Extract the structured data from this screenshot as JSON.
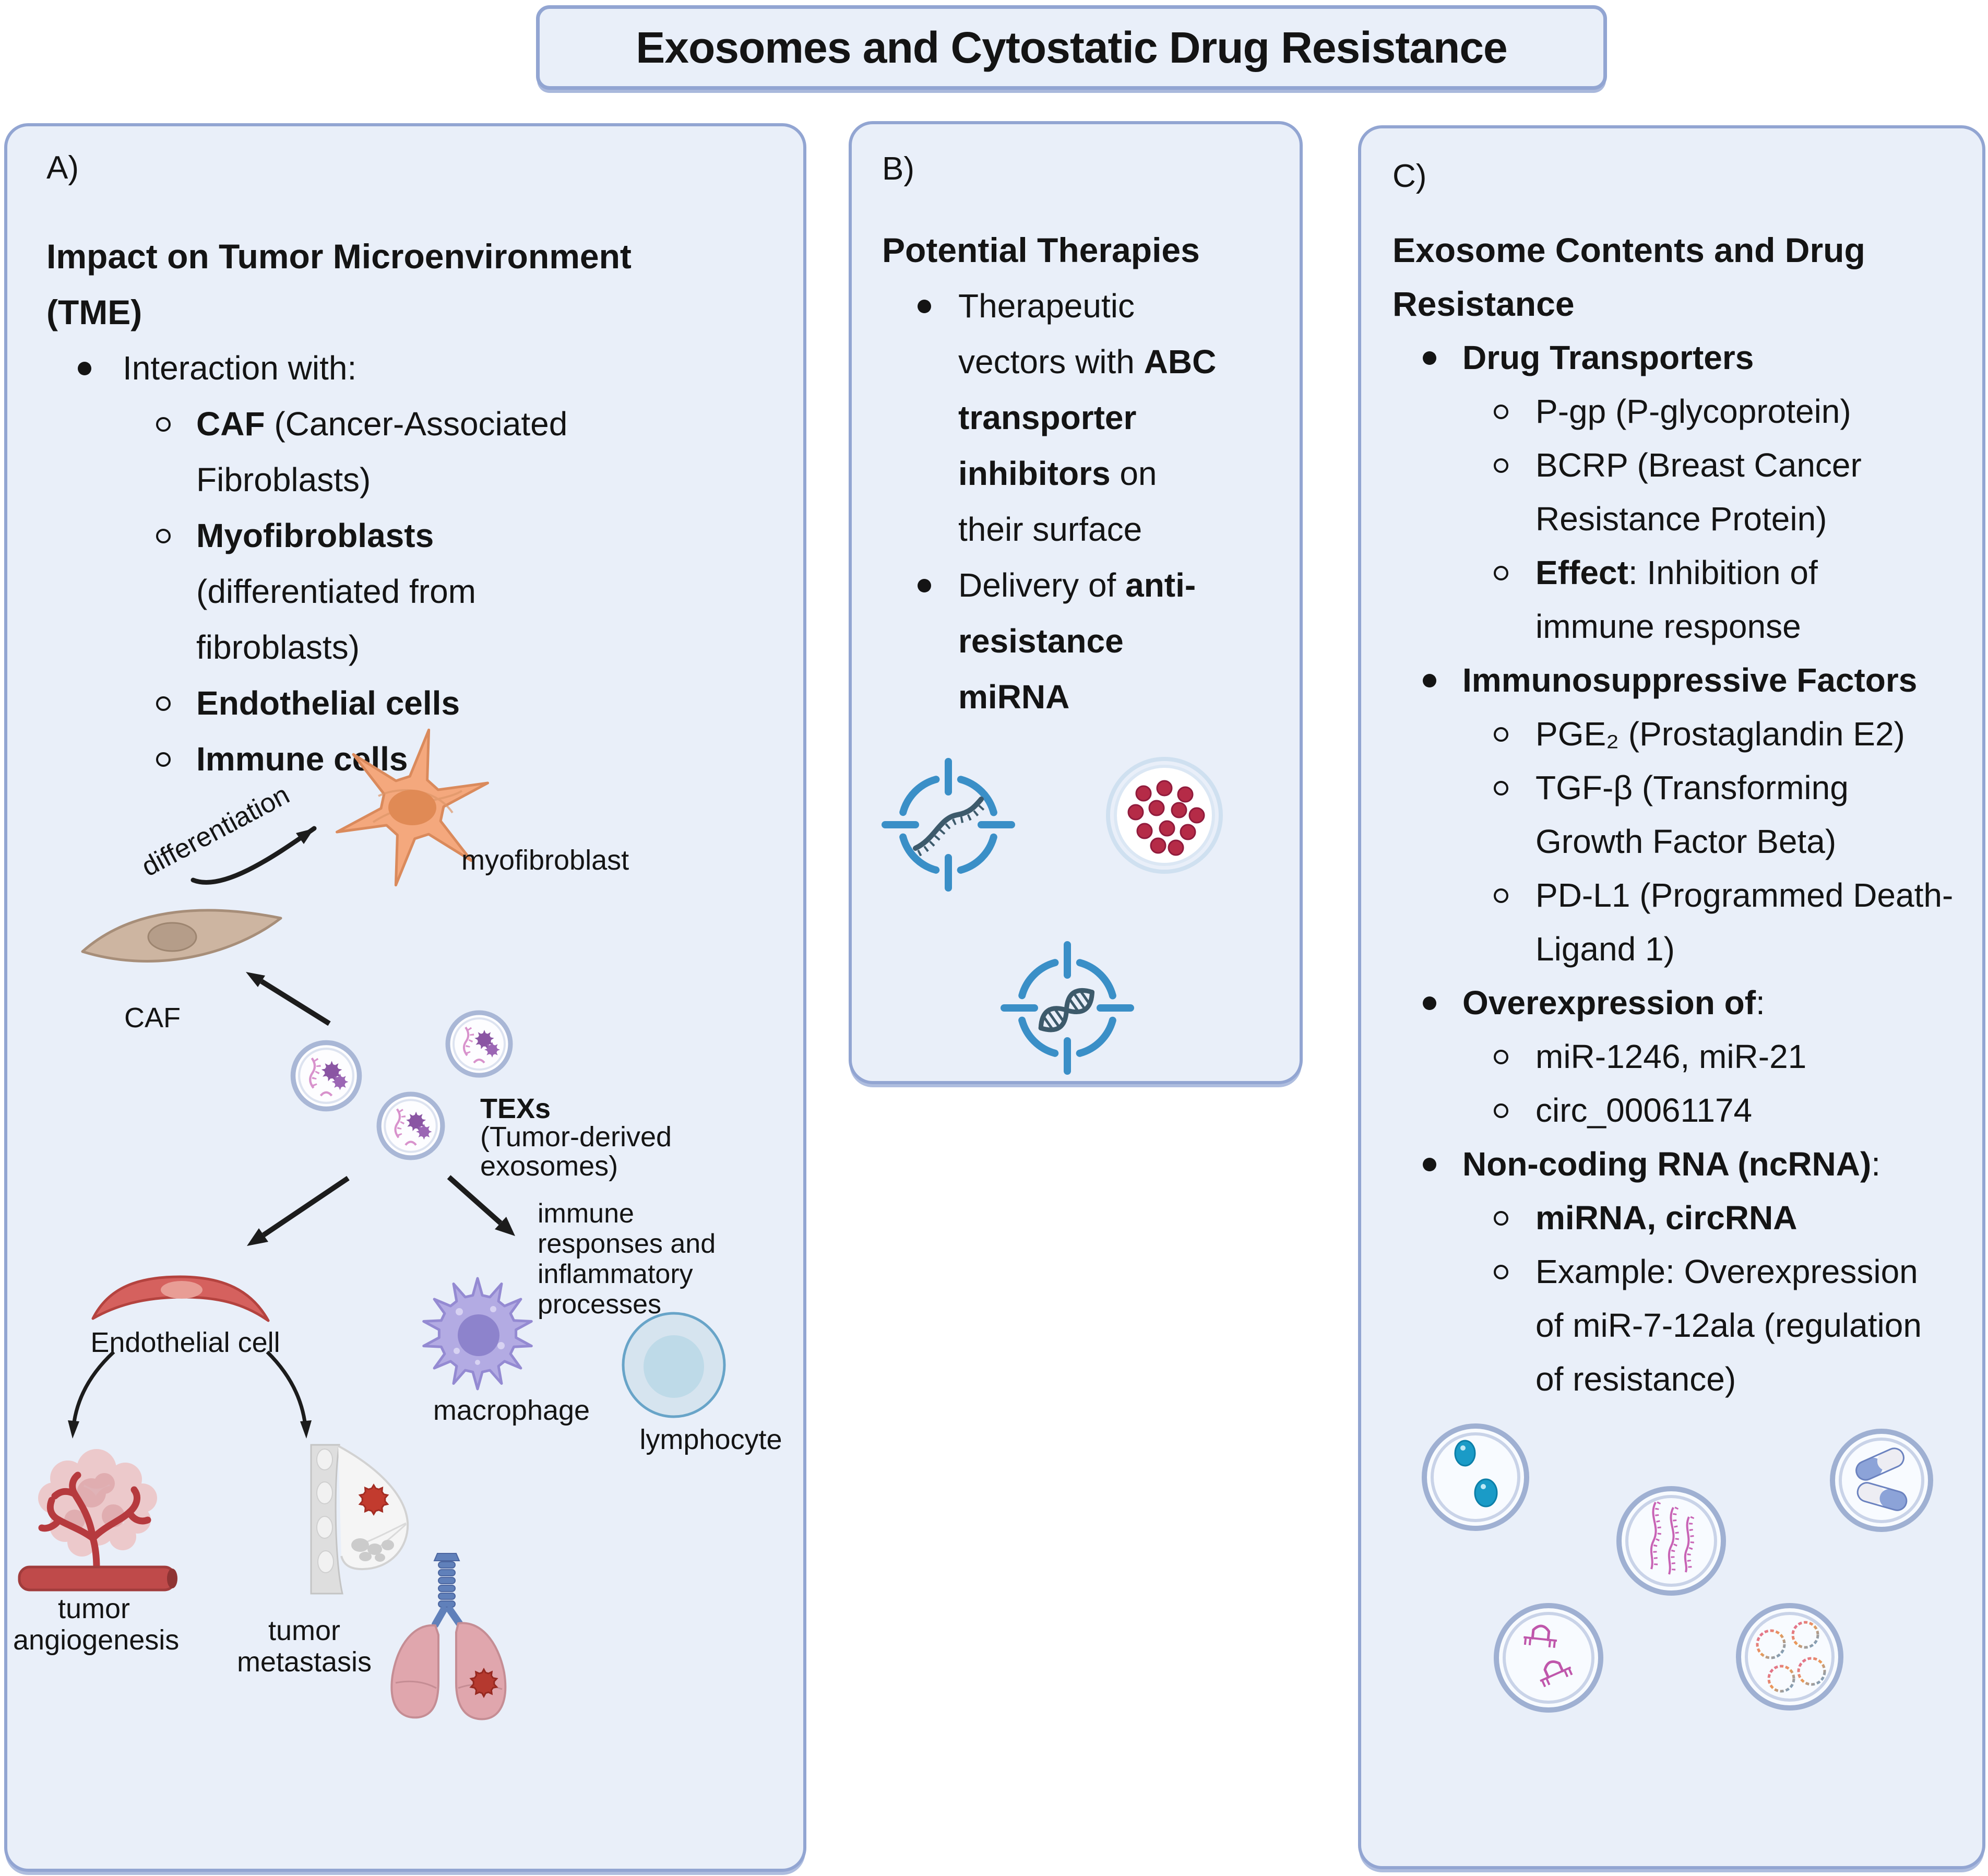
{
  "title": "Exosomes and Cytostatic Drug Resistance",
  "colors": {
    "panel_background": "#e9eff9",
    "panel_border": "#92a5d2",
    "text": "#141414",
    "arrow_black": "#1c1c1c",
    "target_blue": "#3a8fc7",
    "rna_strand_dark": "#3d5a6b",
    "exosome_ring_blue": "#a9b7d6",
    "red_drug_dot": "#b52b47",
    "blue_cargo_dot": "#1a9bc7",
    "pink_rna": "#c863b5",
    "myofibroblast_orange": "#f4a87d",
    "caf_tan": "#cdb5a1",
    "endothelial_red": "#d5615e",
    "macrophage_purple": "#b3abe3",
    "lymphocyte_blue": "#d6e4ef"
  },
  "panels": {
    "a": {
      "tag": "A)",
      "lines": [
        {
          "i": 0,
          "s": [
            [
              "Impact on Tumor Microenvironment",
              true
            ]
          ]
        },
        {
          "i": 0,
          "s": [
            [
              "(TME)",
              true
            ]
          ]
        },
        {
          "i": 1,
          "b": "dot",
          "s": [
            [
              "Interaction with:",
              false
            ]
          ]
        },
        {
          "i": 2,
          "b": "circle",
          "s": [
            [
              "CAF",
              true
            ],
            [
              " (Cancer-Associated",
              false
            ]
          ]
        },
        {
          "i": 2,
          "s": [
            [
              "Fibroblasts)",
              false
            ]
          ]
        },
        {
          "i": 2,
          "b": "circle",
          "s": [
            [
              "Myofibroblasts",
              true
            ]
          ]
        },
        {
          "i": 2,
          "s": [
            [
              "(differentiated from",
              false
            ]
          ]
        },
        {
          "i": 2,
          "s": [
            [
              "fibroblasts)",
              false
            ]
          ]
        },
        {
          "i": 2,
          "b": "circle",
          "s": [
            [
              "Endothelial cells",
              true
            ]
          ]
        },
        {
          "i": 2,
          "b": "circle",
          "s": [
            [
              "Immune cells",
              true
            ]
          ]
        }
      ],
      "labels": {
        "differentiation": "differentiation",
        "myofibroblast": "myofibroblast",
        "caf": "CAF",
        "texs_title": "TEXs",
        "texs_subtitle": "(Tumor-derived exosomes)",
        "immune_processes": "immune responses and inflammatory processes",
        "endothelial_cell": "Endothelial cell",
        "macrophage": "macrophage",
        "lymphocyte": "lymphocyte",
        "tumor_angiogenesis": "tumor angiogenesis",
        "tumor_metastasis": "tumor metastasis"
      }
    },
    "b": {
      "tag": "B)",
      "lines": [
        {
          "i": 0,
          "s": [
            [
              "Potential Therapies",
              true
            ]
          ]
        },
        {
          "i": 1,
          "b": "dot",
          "s": [
            [
              "Therapeutic",
              false
            ]
          ]
        },
        {
          "i": 1,
          "s": [
            [
              "vectors with ",
              false
            ],
            [
              "ABC",
              true
            ]
          ]
        },
        {
          "i": 1,
          "s": [
            [
              "transporter",
              true
            ]
          ]
        },
        {
          "i": 1,
          "s": [
            [
              "inhibitors",
              true
            ],
            [
              " on",
              false
            ]
          ]
        },
        {
          "i": 1,
          "s": [
            [
              "their surface",
              false
            ]
          ]
        },
        {
          "i": 1,
          "b": "dot",
          "s": [
            [
              "Delivery of ",
              false
            ],
            [
              "anti-",
              true
            ]
          ]
        },
        {
          "i": 1,
          "s": [
            [
              "resistance",
              true
            ]
          ]
        },
        {
          "i": 1,
          "s": [
            [
              "miRNA",
              true
            ]
          ]
        }
      ]
    },
    "c": {
      "tag": "C)",
      "lines": [
        {
          "i": 0,
          "s": [
            [
              "Exosome Contents and Drug",
              true
            ]
          ]
        },
        {
          "i": 0,
          "s": [
            [
              "Resistance",
              true
            ]
          ]
        },
        {
          "i": 1,
          "b": "dot",
          "s": [
            [
              "Drug Transporters",
              true
            ]
          ]
        },
        {
          "i": 2,
          "b": "circle",
          "s": [
            [
              "P-gp (P-glycoprotein)",
              false
            ]
          ]
        },
        {
          "i": 2,
          "b": "circle",
          "s": [
            [
              "BCRP (Breast Cancer",
              false
            ]
          ]
        },
        {
          "i": 2,
          "s": [
            [
              "Resistance Protein)",
              false
            ]
          ]
        },
        {
          "i": 2,
          "b": "circle",
          "s": [
            [
              "Effect",
              true
            ],
            [
              ": Inhibition of",
              false
            ]
          ]
        },
        {
          "i": 2,
          "s": [
            [
              "immune response",
              false
            ]
          ]
        },
        {
          "i": 1,
          "b": "dot",
          "s": [
            [
              "Immunosuppressive Factors",
              true
            ]
          ]
        },
        {
          "i": 2,
          "b": "circle",
          "s": [
            [
              "PGE₂ (Prostaglandin E2)",
              false
            ]
          ]
        },
        {
          "i": 2,
          "b": "circle",
          "s": [
            [
              "TGF-β (Transforming",
              false
            ]
          ]
        },
        {
          "i": 2,
          "s": [
            [
              "Growth Factor Beta)",
              false
            ]
          ]
        },
        {
          "i": 2,
          "b": "circle",
          "s": [
            [
              "PD-L1 (Programmed Death-",
              false
            ]
          ]
        },
        {
          "i": 2,
          "s": [
            [
              "Ligand 1)",
              false
            ]
          ]
        },
        {
          "i": 1,
          "b": "dot",
          "s": [
            [
              "Overexpression of",
              true
            ],
            [
              ":",
              false
            ]
          ]
        },
        {
          "i": 2,
          "b": "circle",
          "s": [
            [
              "miR-1246, miR-21",
              false
            ]
          ]
        },
        {
          "i": 2,
          "b": "circle",
          "s": [
            [
              "circ_00061174",
              false
            ]
          ]
        },
        {
          "i": 1,
          "b": "dot",
          "s": [
            [
              "Non-coding RNA (ncRNA)",
              true
            ],
            [
              ":",
              false
            ]
          ]
        },
        {
          "i": 2,
          "b": "circle",
          "s": [
            [
              "miRNA, circRNA",
              true
            ]
          ]
        },
        {
          "i": 2,
          "b": "circle",
          "s": [
            [
              "Example: Overexpression",
              false
            ]
          ]
        },
        {
          "i": 2,
          "s": [
            [
              "of miR-7-12ala (regulation",
              false
            ]
          ]
        },
        {
          "i": 2,
          "s": [
            [
              "of resistance)",
              false
            ]
          ]
        }
      ]
    }
  },
  "icons": {
    "panel_a": [
      "myofibroblast-cell-icon",
      "caf-cell-icon",
      "tumor-exosome-icon",
      "endothelial-cell-icon",
      "macrophage-cell-icon",
      "lymphocyte-cell-icon",
      "tumor-angiogenesis-icon",
      "breast-tumor-icon",
      "lung-metastasis-icon",
      "differentiation-arrow",
      "texs-to-caf-arrow",
      "texs-to-endothelial-arrow",
      "texs-to-immune-arrow",
      "endothelial-to-angiogenesis-arrow",
      "endothelial-to-metastasis-arrow"
    ],
    "panel_b": [
      "mirna-target-crosshair-icon",
      "exosome-drug-dots-icon",
      "dna-target-crosshair-icon"
    ],
    "panel_c": [
      "vesicle-blue-cargo-icon",
      "vesicle-mirna-strands-icon",
      "vesicle-drug-capsules-icon",
      "vesicle-hairpin-rna-icon",
      "vesicle-circrna-icon"
    ]
  }
}
